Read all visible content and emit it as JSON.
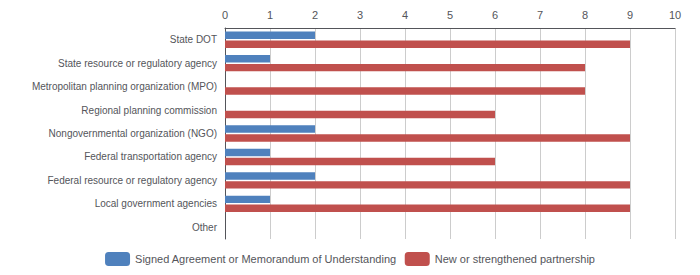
{
  "chart_data": {
    "type": "bar",
    "orientation": "horizontal",
    "categories": [
      "Other",
      "Local government agencies",
      "Federal resource or regulatory agency",
      "Federal transportation agency",
      "Nongovernmental organization (NGO)",
      "Regional planning commission",
      "Metropolitan planning organization (MPO)",
      "State resource or regulatory agency",
      "State DOT"
    ],
    "series": [
      {
        "name": "Signed Agreement or Memorandum of Understanding",
        "color": "#4F81BD",
        "values": [
          0,
          1,
          2,
          1,
          2,
          0,
          0,
          1,
          2
        ]
      },
      {
        "name": "New or strengthened partnership",
        "color": "#C0504D",
        "values": [
          0,
          9,
          9,
          6,
          9,
          6,
          8,
          8,
          9
        ]
      }
    ],
    "xlim": [
      0,
      10
    ],
    "xticks": [
      0,
      1,
      2,
      3,
      4,
      5,
      6,
      7,
      8,
      9,
      10
    ],
    "grid": true,
    "legend": "bottom"
  }
}
